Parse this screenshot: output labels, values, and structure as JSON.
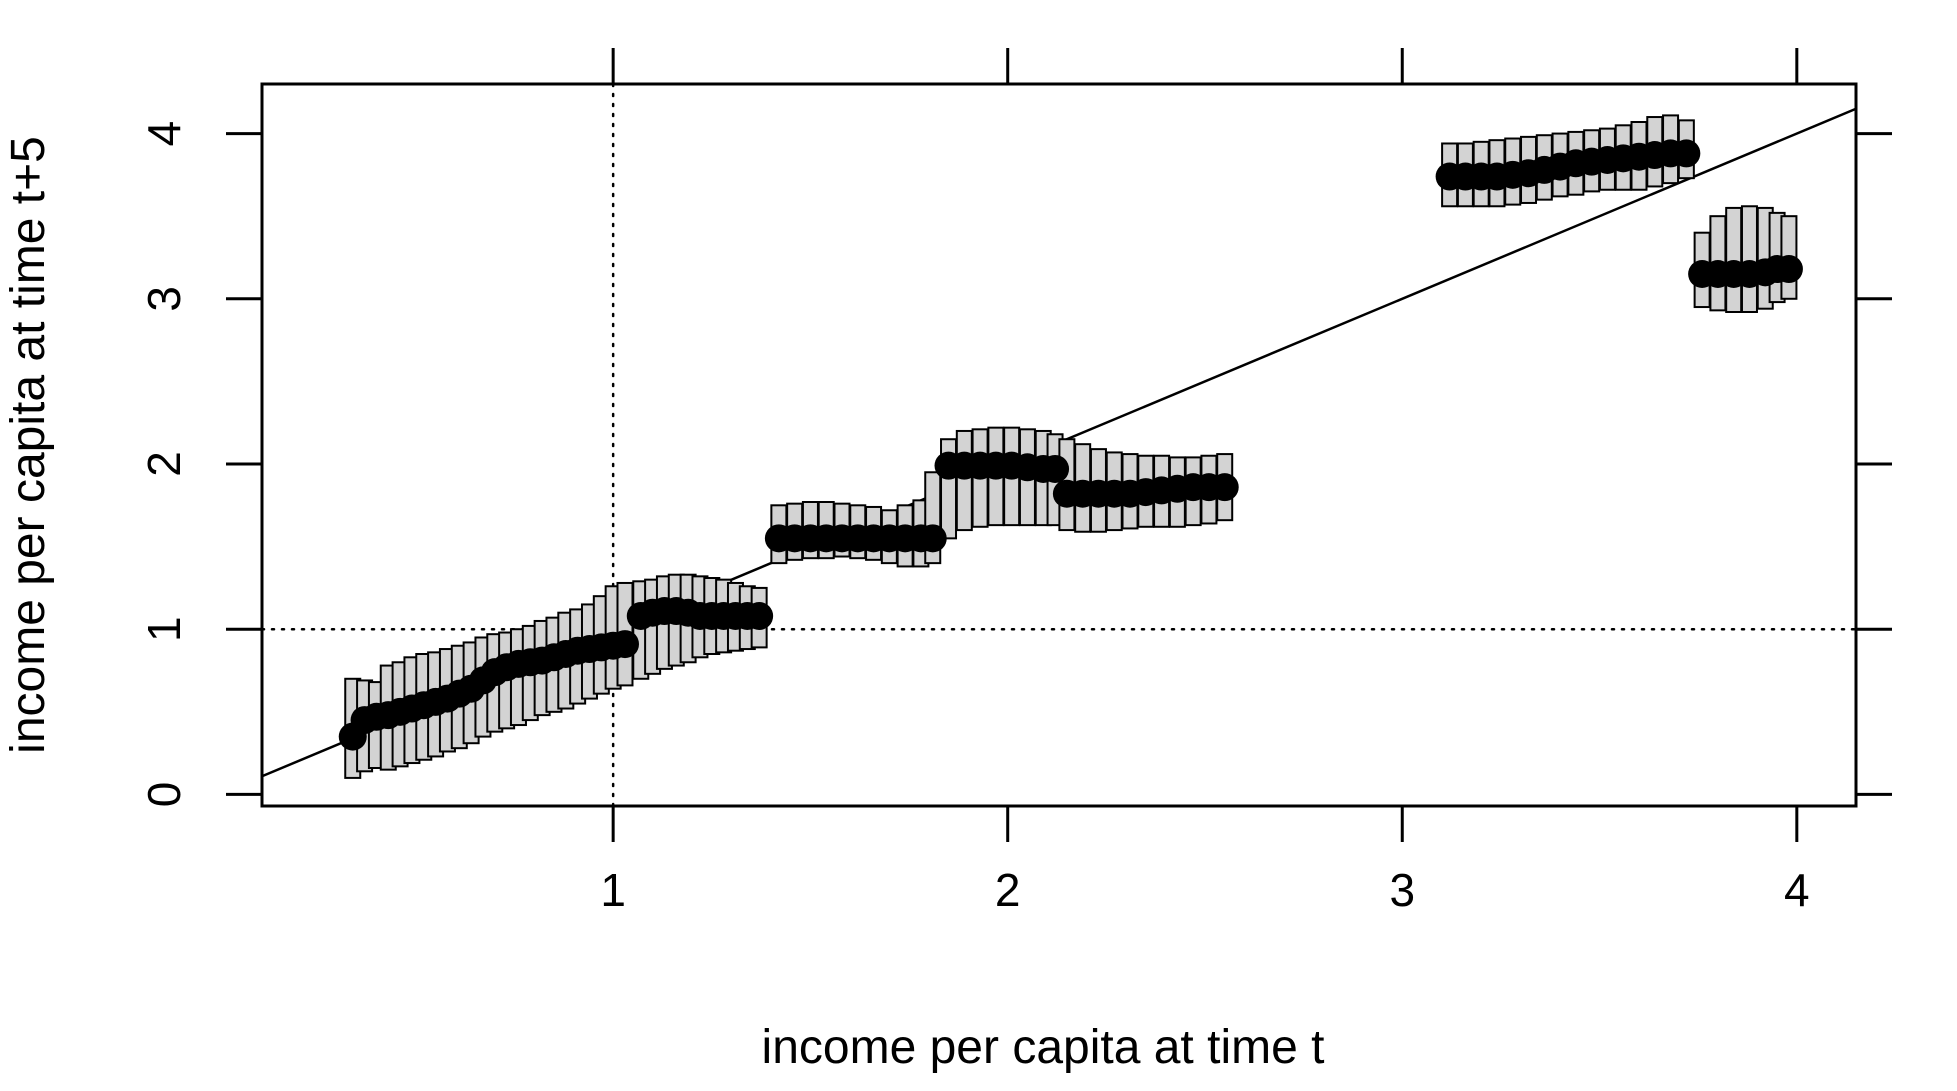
{
  "chart_data": {
    "type": "scatter",
    "title": "",
    "xlabel": "income per capita at time t",
    "ylabel": "income per capita at time t+5",
    "xlim": [
      0.11,
      4.15
    ],
    "ylim": [
      -0.07,
      4.3
    ],
    "x_ticks": [
      1,
      2,
      3,
      4
    ],
    "x_tick_labels": [
      "1",
      "2",
      "3",
      "4"
    ],
    "y_ticks": [
      0,
      1,
      2,
      3,
      4
    ],
    "y_tick_labels": [
      "0",
      "1",
      "2",
      "3",
      "4"
    ],
    "x_axis_side": "bottom",
    "y_axis_side": "left",
    "ticks_mirrored": [
      "top",
      "right"
    ],
    "grid": false,
    "legend": "none",
    "reference_lines": [
      {
        "kind": "diagonal",
        "description": "45-degree line y = x",
        "style": "solid"
      },
      {
        "kind": "vertical",
        "x": 1,
        "style": "dotted"
      },
      {
        "kind": "horizontal",
        "y": 1,
        "style": "dotted"
      }
    ],
    "colors": {
      "median_points": "#000000",
      "intervals_fill": "#d3d3d3",
      "intervals_stroke": "#000000",
      "reference_lines": "#000000"
    },
    "series": [
      {
        "role": "median",
        "marker": "filled-circle",
        "points": [
          {
            "x": 0.34,
            "y": 0.35
          },
          {
            "x": 0.37,
            "y": 0.45
          },
          {
            "x": 0.4,
            "y": 0.47
          },
          {
            "x": 0.43,
            "y": 0.48
          },
          {
            "x": 0.46,
            "y": 0.5
          },
          {
            "x": 0.49,
            "y": 0.52
          },
          {
            "x": 0.52,
            "y": 0.54
          },
          {
            "x": 0.55,
            "y": 0.56
          },
          {
            "x": 0.58,
            "y": 0.58
          },
          {
            "x": 0.61,
            "y": 0.61
          },
          {
            "x": 0.64,
            "y": 0.64
          },
          {
            "x": 0.67,
            "y": 0.69
          },
          {
            "x": 0.7,
            "y": 0.74
          },
          {
            "x": 0.73,
            "y": 0.77
          },
          {
            "x": 0.76,
            "y": 0.79
          },
          {
            "x": 0.79,
            "y": 0.8
          },
          {
            "x": 0.82,
            "y": 0.81
          },
          {
            "x": 0.85,
            "y": 0.83
          },
          {
            "x": 0.88,
            "y": 0.85
          },
          {
            "x": 0.91,
            "y": 0.87
          },
          {
            "x": 0.94,
            "y": 0.88
          },
          {
            "x": 0.97,
            "y": 0.89
          },
          {
            "x": 1.0,
            "y": 0.9
          },
          {
            "x": 1.03,
            "y": 0.91
          },
          {
            "x": 1.07,
            "y": 1.08
          },
          {
            "x": 1.1,
            "y": 1.1
          },
          {
            "x": 1.13,
            "y": 1.11
          },
          {
            "x": 1.16,
            "y": 1.11
          },
          {
            "x": 1.19,
            "y": 1.1
          },
          {
            "x": 1.22,
            "y": 1.08
          },
          {
            "x": 1.25,
            "y": 1.08
          },
          {
            "x": 1.28,
            "y": 1.08
          },
          {
            "x": 1.31,
            "y": 1.08
          },
          {
            "x": 1.34,
            "y": 1.08
          },
          {
            "x": 1.37,
            "y": 1.08
          },
          {
            "x": 1.42,
            "y": 1.55
          },
          {
            "x": 1.46,
            "y": 1.55
          },
          {
            "x": 1.5,
            "y": 1.55
          },
          {
            "x": 1.54,
            "y": 1.55
          },
          {
            "x": 1.58,
            "y": 1.55
          },
          {
            "x": 1.62,
            "y": 1.55
          },
          {
            "x": 1.66,
            "y": 1.55
          },
          {
            "x": 1.7,
            "y": 1.55
          },
          {
            "x": 1.74,
            "y": 1.55
          },
          {
            "x": 1.78,
            "y": 1.55
          },
          {
            "x": 1.81,
            "y": 1.55
          },
          {
            "x": 1.85,
            "y": 1.99
          },
          {
            "x": 1.89,
            "y": 1.99
          },
          {
            "x": 1.93,
            "y": 1.99
          },
          {
            "x": 1.97,
            "y": 1.99
          },
          {
            "x": 2.01,
            "y": 1.99
          },
          {
            "x": 2.05,
            "y": 1.98
          },
          {
            "x": 2.09,
            "y": 1.97
          },
          {
            "x": 2.12,
            "y": 1.97
          },
          {
            "x": 2.15,
            "y": 1.82
          },
          {
            "x": 2.19,
            "y": 1.82
          },
          {
            "x": 2.23,
            "y": 1.82
          },
          {
            "x": 2.27,
            "y": 1.82
          },
          {
            "x": 2.31,
            "y": 1.82
          },
          {
            "x": 2.35,
            "y": 1.83
          },
          {
            "x": 2.39,
            "y": 1.84
          },
          {
            "x": 2.43,
            "y": 1.85
          },
          {
            "x": 2.47,
            "y": 1.86
          },
          {
            "x": 2.51,
            "y": 1.86
          },
          {
            "x": 2.55,
            "y": 1.86
          },
          {
            "x": 3.12,
            "y": 3.74
          },
          {
            "x": 3.16,
            "y": 3.74
          },
          {
            "x": 3.2,
            "y": 3.74
          },
          {
            "x": 3.24,
            "y": 3.74
          },
          {
            "x": 3.28,
            "y": 3.75
          },
          {
            "x": 3.32,
            "y": 3.76
          },
          {
            "x": 3.36,
            "y": 3.78
          },
          {
            "x": 3.4,
            "y": 3.8
          },
          {
            "x": 3.44,
            "y": 3.82
          },
          {
            "x": 3.48,
            "y": 3.83
          },
          {
            "x": 3.52,
            "y": 3.84
          },
          {
            "x": 3.56,
            "y": 3.85
          },
          {
            "x": 3.6,
            "y": 3.86
          },
          {
            "x": 3.64,
            "y": 3.87
          },
          {
            "x": 3.68,
            "y": 3.88
          },
          {
            "x": 3.72,
            "y": 3.88
          },
          {
            "x": 3.76,
            "y": 3.15
          },
          {
            "x": 3.8,
            "y": 3.15
          },
          {
            "x": 3.84,
            "y": 3.15
          },
          {
            "x": 3.88,
            "y": 3.15
          },
          {
            "x": 3.92,
            "y": 3.16
          },
          {
            "x": 3.95,
            "y": 3.18
          },
          {
            "x": 3.98,
            "y": 3.18
          }
        ]
      },
      {
        "role": "interval",
        "style": "hatched-band",
        "segments": [
          {
            "x": 0.34,
            "low": 0.1,
            "high": 0.7
          },
          {
            "x": 0.37,
            "low": 0.14,
            "high": 0.69
          },
          {
            "x": 0.4,
            "low": 0.16,
            "high": 0.68
          },
          {
            "x": 0.43,
            "low": 0.15,
            "high": 0.78
          },
          {
            "x": 0.46,
            "low": 0.17,
            "high": 0.8
          },
          {
            "x": 0.49,
            "low": 0.19,
            "high": 0.83
          },
          {
            "x": 0.52,
            "low": 0.21,
            "high": 0.85
          },
          {
            "x": 0.55,
            "low": 0.23,
            "high": 0.86
          },
          {
            "x": 0.58,
            "low": 0.26,
            "high": 0.88
          },
          {
            "x": 0.61,
            "low": 0.28,
            "high": 0.9
          },
          {
            "x": 0.64,
            "low": 0.31,
            "high": 0.92
          },
          {
            "x": 0.67,
            "low": 0.35,
            "high": 0.95
          },
          {
            "x": 0.7,
            "low": 0.38,
            "high": 0.97
          },
          {
            "x": 0.73,
            "low": 0.4,
            "high": 0.98
          },
          {
            "x": 0.76,
            "low": 0.42,
            "high": 1.0
          },
          {
            "x": 0.79,
            "low": 0.45,
            "high": 1.02
          },
          {
            "x": 0.82,
            "low": 0.48,
            "high": 1.05
          },
          {
            "x": 0.85,
            "low": 0.5,
            "high": 1.07
          },
          {
            "x": 0.88,
            "low": 0.52,
            "high": 1.1
          },
          {
            "x": 0.91,
            "low": 0.55,
            "high": 1.12
          },
          {
            "x": 0.94,
            "low": 0.58,
            "high": 1.15
          },
          {
            "x": 0.97,
            "low": 0.61,
            "high": 1.2
          },
          {
            "x": 1.0,
            "low": 0.64,
            "high": 1.26
          },
          {
            "x": 1.03,
            "low": 0.66,
            "high": 1.28
          },
          {
            "x": 1.07,
            "low": 0.7,
            "high": 1.29
          },
          {
            "x": 1.1,
            "low": 0.73,
            "high": 1.3
          },
          {
            "x": 1.13,
            "low": 0.76,
            "high": 1.32
          },
          {
            "x": 1.16,
            "low": 0.78,
            "high": 1.33
          },
          {
            "x": 1.19,
            "low": 0.8,
            "high": 1.33
          },
          {
            "x": 1.22,
            "low": 0.83,
            "high": 1.32
          },
          {
            "x": 1.25,
            "low": 0.85,
            "high": 1.31
          },
          {
            "x": 1.28,
            "low": 0.86,
            "high": 1.3
          },
          {
            "x": 1.31,
            "low": 0.87,
            "high": 1.28
          },
          {
            "x": 1.34,
            "low": 0.88,
            "high": 1.26
          },
          {
            "x": 1.37,
            "low": 0.89,
            "high": 1.25
          },
          {
            "x": 1.42,
            "low": 1.4,
            "high": 1.75
          },
          {
            "x": 1.46,
            "low": 1.42,
            "high": 1.76
          },
          {
            "x": 1.5,
            "low": 1.43,
            "high": 1.77
          },
          {
            "x": 1.54,
            "low": 1.43,
            "high": 1.77
          },
          {
            "x": 1.58,
            "low": 1.44,
            "high": 1.76
          },
          {
            "x": 1.62,
            "low": 1.43,
            "high": 1.75
          },
          {
            "x": 1.66,
            "low": 1.42,
            "high": 1.74
          },
          {
            "x": 1.7,
            "low": 1.4,
            "high": 1.72
          },
          {
            "x": 1.74,
            "low": 1.38,
            "high": 1.75
          },
          {
            "x": 1.78,
            "low": 1.38,
            "high": 1.78
          },
          {
            "x": 1.81,
            "low": 1.4,
            "high": 1.95
          },
          {
            "x": 1.85,
            "low": 1.55,
            "high": 2.15
          },
          {
            "x": 1.89,
            "low": 1.6,
            "high": 2.2
          },
          {
            "x": 1.93,
            "low": 1.62,
            "high": 2.21
          },
          {
            "x": 1.97,
            "low": 1.63,
            "high": 2.22
          },
          {
            "x": 2.01,
            "low": 1.63,
            "high": 2.22
          },
          {
            "x": 2.05,
            "low": 1.63,
            "high": 2.21
          },
          {
            "x": 2.09,
            "low": 1.63,
            "high": 2.2
          },
          {
            "x": 2.12,
            "low": 1.63,
            "high": 2.18
          },
          {
            "x": 2.15,
            "low": 1.6,
            "high": 2.15
          },
          {
            "x": 2.19,
            "low": 1.59,
            "high": 2.12
          },
          {
            "x": 2.23,
            "low": 1.59,
            "high": 2.09
          },
          {
            "x": 2.27,
            "low": 1.6,
            "high": 2.07
          },
          {
            "x": 2.31,
            "low": 1.61,
            "high": 2.06
          },
          {
            "x": 2.35,
            "low": 1.62,
            "high": 2.05
          },
          {
            "x": 2.39,
            "low": 1.62,
            "high": 2.05
          },
          {
            "x": 2.43,
            "low": 1.62,
            "high": 2.04
          },
          {
            "x": 2.47,
            "low": 1.63,
            "high": 2.04
          },
          {
            "x": 2.51,
            "low": 1.64,
            "high": 2.05
          },
          {
            "x": 2.55,
            "low": 1.66,
            "high": 2.06
          },
          {
            "x": 3.12,
            "low": 3.56,
            "high": 3.94
          },
          {
            "x": 3.16,
            "low": 3.56,
            "high": 3.94
          },
          {
            "x": 3.2,
            "low": 3.56,
            "high": 3.95
          },
          {
            "x": 3.24,
            "low": 3.56,
            "high": 3.96
          },
          {
            "x": 3.28,
            "low": 3.57,
            "high": 3.97
          },
          {
            "x": 3.32,
            "low": 3.58,
            "high": 3.98
          },
          {
            "x": 3.36,
            "low": 3.6,
            "high": 3.99
          },
          {
            "x": 3.4,
            "low": 3.62,
            "high": 4.0
          },
          {
            "x": 3.44,
            "low": 3.63,
            "high": 4.01
          },
          {
            "x": 3.48,
            "low": 3.65,
            "high": 4.02
          },
          {
            "x": 3.52,
            "low": 3.66,
            "high": 4.03
          },
          {
            "x": 3.56,
            "low": 3.66,
            "high": 4.05
          },
          {
            "x": 3.6,
            "low": 3.66,
            "high": 4.07
          },
          {
            "x": 3.64,
            "low": 3.68,
            "high": 4.1
          },
          {
            "x": 3.68,
            "low": 3.7,
            "high": 4.11
          },
          {
            "x": 3.72,
            "low": 3.73,
            "high": 4.08
          },
          {
            "x": 3.76,
            "low": 2.95,
            "high": 3.4
          },
          {
            "x": 3.8,
            "low": 2.93,
            "high": 3.5
          },
          {
            "x": 3.84,
            "low": 2.92,
            "high": 3.55
          },
          {
            "x": 3.88,
            "low": 2.92,
            "high": 3.56
          },
          {
            "x": 3.92,
            "low": 2.94,
            "high": 3.55
          },
          {
            "x": 3.95,
            "low": 2.98,
            "high": 3.52
          },
          {
            "x": 3.98,
            "low": 3.0,
            "high": 3.5
          }
        ]
      }
    ]
  }
}
